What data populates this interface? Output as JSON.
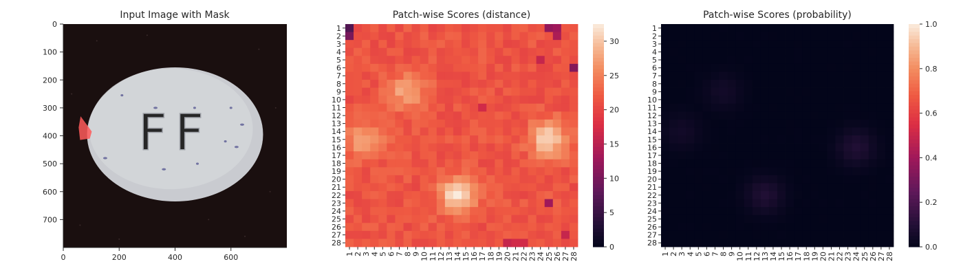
{
  "chart_data": [
    {
      "type": "image",
      "title": "Input Image with Mask",
      "xticks": [
        0,
        200,
        400,
        600
      ],
      "yticks": [
        0,
        100,
        200,
        300,
        400,
        500,
        600,
        700
      ],
      "xlim": [
        0,
        800
      ],
      "ylim": [
        800,
        0
      ],
      "image": {
        "background": "#1a0f0f",
        "object": "white oval tablet embossed with letters",
        "emboss_text": "FF",
        "mask_color": "#ff5a5a"
      }
    },
    {
      "type": "heatmap",
      "title": "Patch-wise Scores (distance)",
      "rows": 28,
      "cols": 28,
      "colorbar": {
        "min": 0,
        "max": 32.5,
        "ticks": [
          0,
          5,
          10,
          15,
          20,
          25,
          30
        ]
      },
      "colormap": "rocket",
      "base_value": 21.5,
      "hotspots": [
        {
          "row": 15,
          "col": 3,
          "peak": 28
        },
        {
          "row": 9,
          "col": 8,
          "peak": 28
        },
        {
          "row": 22,
          "col": 14,
          "peak": 32
        },
        {
          "row": 15,
          "col": 25,
          "peak": 31
        }
      ],
      "low_cells": [
        {
          "row": 1,
          "col": 1,
          "value": 7
        },
        {
          "row": 2,
          "col": 1,
          "value": 10
        },
        {
          "row": 1,
          "col": 25,
          "value": 12
        },
        {
          "row": 1,
          "col": 26,
          "value": 13
        },
        {
          "row": 2,
          "col": 26,
          "value": 14
        },
        {
          "row": 6,
          "col": 28,
          "value": 11
        },
        {
          "row": 5,
          "col": 24,
          "value": 16
        },
        {
          "row": 23,
          "col": 25,
          "value": 13
        },
        {
          "row": 11,
          "col": 17,
          "value": 17
        },
        {
          "row": 27,
          "col": 27,
          "value": 16
        },
        {
          "row": 28,
          "col": 20,
          "value": 16
        },
        {
          "row": 28,
          "col": 21,
          "value": 17
        },
        {
          "row": 28,
          "col": 22,
          "value": 17
        }
      ]
    },
    {
      "type": "heatmap",
      "title": "Patch-wise Scores (probability)",
      "rows": 28,
      "cols": 28,
      "colorbar": {
        "min": 0,
        "max": 1,
        "ticks": [
          "0.0",
          "0.2",
          "0.4",
          "0.6",
          "0.8",
          "1.0"
        ]
      },
      "colormap": "rocket",
      "base_value": 0.0,
      "hotspots": [
        {
          "row": 22,
          "col": 13,
          "peak": 0.09
        },
        {
          "row": 16,
          "col": 24,
          "peak": 0.09
        },
        {
          "row": 14,
          "col": 3,
          "peak": 0.05
        },
        {
          "row": 9,
          "col": 8,
          "peak": 0.05
        }
      ]
    }
  ]
}
